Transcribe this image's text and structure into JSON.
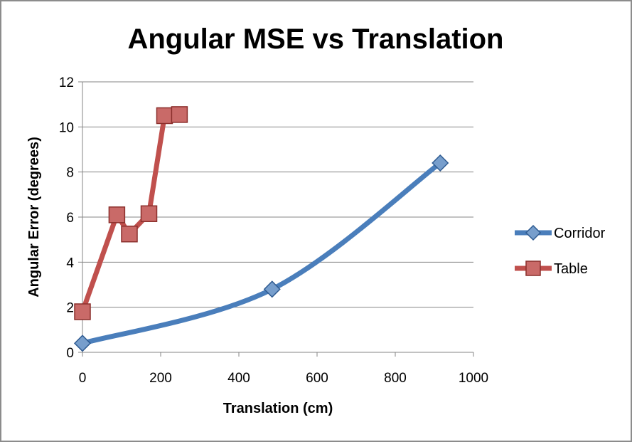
{
  "chart_data": {
    "type": "line",
    "title": "Angular MSE vs Translation",
    "xlabel": "Translation (cm)",
    "ylabel": "Angular Error (degrees)",
    "xlim": [
      0,
      1000
    ],
    "ylim": [
      0,
      12
    ],
    "xticks": [
      0,
      200,
      400,
      600,
      800,
      1000
    ],
    "yticks": [
      0,
      2,
      4,
      6,
      8,
      10,
      12
    ],
    "grid": "horizontal",
    "legend_position": "right",
    "series": [
      {
        "name": "Corridor",
        "color": "#4a7ebb",
        "marker": "diamond",
        "smooth": true,
        "points": [
          [
            0,
            0.4
          ],
          [
            485,
            2.8
          ],
          [
            915,
            8.4
          ]
        ]
      },
      {
        "name": "Table",
        "color": "#c0504d",
        "marker": "square",
        "smooth": false,
        "points": [
          [
            0,
            1.8
          ],
          [
            88,
            6.1
          ],
          [
            120,
            5.25
          ],
          [
            170,
            6.15
          ],
          [
            210,
            10.5
          ],
          [
            248,
            10.55
          ]
        ]
      }
    ]
  }
}
